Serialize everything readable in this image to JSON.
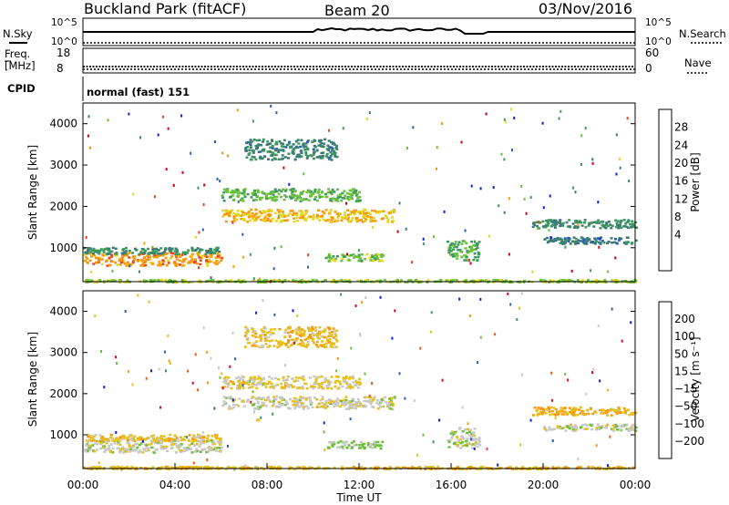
{
  "header": {
    "station": "Buckland Park (fitACF)",
    "beam": "Beam 20",
    "date": "03/Nov/2016"
  },
  "status_panels": {
    "nsky_label": "N.Sky",
    "nsky_ticks": [
      "10^5",
      "10^0"
    ],
    "nsearch_label": "N.Search",
    "nsearch_ticks": [
      "10^5",
      "10^0"
    ],
    "freq_label": "Freq.",
    "freq_unit": "[MHz]",
    "freq_ticks": [
      "18",
      "8"
    ],
    "nave_label": "Nave",
    "nave_ticks": [
      "60",
      "0"
    ],
    "cpid_label": "CPID",
    "cpid_value": "normal (fast) 151"
  },
  "chart_data": [
    {
      "type": "heatmap",
      "title": "",
      "ylabel": "Slant Range [km]",
      "yticks": [
        "4000",
        "3000",
        "2000",
        "1000"
      ],
      "ylim": [
        180,
        4500
      ],
      "xlim": [
        "00:00",
        "24:00"
      ],
      "colorbar_label": "Power [dB]",
      "colorbar_ticks": [
        "28",
        "24",
        "20",
        "16",
        "12",
        "8",
        "4"
      ],
      "colorbar_range": [
        0,
        30
      ],
      "colors": [
        "#0a1ee6",
        "#2c5fb0",
        "#3b7d74",
        "#3c9a5a",
        "#6cc03c",
        "#e2d820",
        "#f59a10",
        "#e8441a",
        "#d40010"
      ],
      "features": [
        {
          "t0": 0.0,
          "t1": 6.0,
          "r": 750,
          "w": 160,
          "v": 22
        },
        {
          "t0": 0.0,
          "t1": 6.0,
          "r": 950,
          "w": 80,
          "v": 10
        },
        {
          "t0": 6.0,
          "t1": 13.5,
          "r": 1800,
          "w": 150,
          "v": 20
        },
        {
          "t0": 6.0,
          "t1": 12.0,
          "r": 2300,
          "w": 150,
          "v": 14
        },
        {
          "t0": 7.0,
          "t1": 11.0,
          "r": 3400,
          "w": 250,
          "v": 9
        },
        {
          "t0": 10.5,
          "t1": 13.0,
          "r": 780,
          "w": 90,
          "v": 15
        },
        {
          "t0": 15.8,
          "t1": 17.2,
          "r": 950,
          "w": 250,
          "v": 13
        },
        {
          "t0": 19.5,
          "t1": 24.0,
          "r": 1600,
          "w": 100,
          "v": 10
        },
        {
          "t0": 20.0,
          "t1": 24.0,
          "r": 1200,
          "w": 80,
          "v": 8
        },
        {
          "t0": 0.0,
          "t1": 24.0,
          "r": 220,
          "w": 30,
          "v": 16
        }
      ]
    },
    {
      "type": "heatmap",
      "title": "",
      "ylabel": "Slant Range [km]",
      "yticks": [
        "4000",
        "3000",
        "2000",
        "1000"
      ],
      "ylim": [
        180,
        4500
      ],
      "xlim": [
        "00:00",
        "24:00"
      ],
      "xticks": [
        "00:00",
        "04:00",
        "08:00",
        "12:00",
        "16:00",
        "20:00",
        "00:00"
      ],
      "xlabel": "Time UT",
      "colorbar_label": "Velocity [m s⁻¹]",
      "colorbar_ticks": [
        "200",
        "100",
        "50",
        "15",
        "−15",
        "−50",
        "−100",
        "−200"
      ],
      "colorbar_range": [
        -250,
        250
      ],
      "colors": [
        "#e0081a",
        "#f05a10",
        "#f59a10",
        "#e6c020",
        "#c8c8c8",
        "#6cc03c",
        "#3c9a5a",
        "#2c5fb0",
        "#0a1ee6"
      ],
      "features": [
        {
          "t0": 0.0,
          "t1": 6.0,
          "r": 750,
          "w": 160,
          "v": 0
        },
        {
          "t0": 0.0,
          "t1": 6.0,
          "r": 950,
          "w": 80,
          "v": -60
        },
        {
          "t0": 6.0,
          "t1": 13.5,
          "r": 1800,
          "w": 150,
          "v": -10
        },
        {
          "t0": 6.0,
          "t1": 12.0,
          "r": 2300,
          "w": 150,
          "v": -40
        },
        {
          "t0": 7.0,
          "t1": 11.0,
          "r": 3400,
          "w": 250,
          "v": -60
        },
        {
          "t0": 10.5,
          "t1": 13.0,
          "r": 780,
          "w": 90,
          "v": 40
        },
        {
          "t0": 15.8,
          "t1": 17.2,
          "r": 950,
          "w": 250,
          "v": 0
        },
        {
          "t0": 19.5,
          "t1": 24.0,
          "r": 1600,
          "w": 100,
          "v": -80
        },
        {
          "t0": 20.0,
          "t1": 24.0,
          "r": 1200,
          "w": 80,
          "v": 0
        },
        {
          "t0": 0.0,
          "t1": 24.0,
          "r": 220,
          "w": 30,
          "v": -70
        }
      ]
    }
  ]
}
